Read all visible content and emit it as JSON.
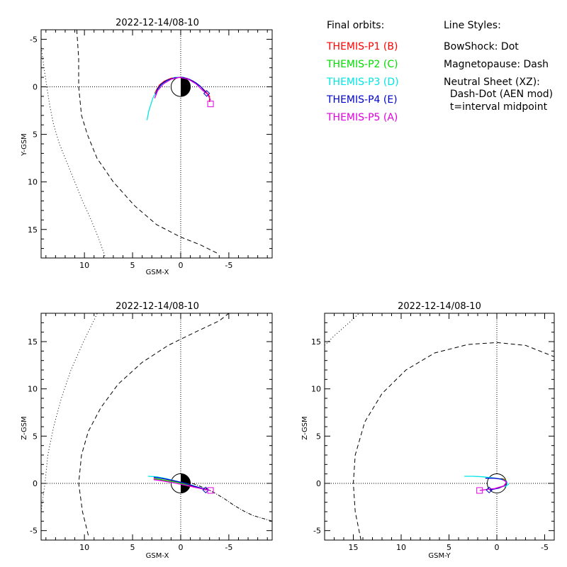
{
  "legend": {
    "heading": "Final orbits:",
    "probes": [
      {
        "label": "THEMIS-P1 (B)",
        "color": "#ff0000"
      },
      {
        "label": "THEMIS-P2 (C)",
        "color": "#00dd00"
      },
      {
        "label": "THEMIS-P3 (D)",
        "color": "#00e5e5"
      },
      {
        "label": "THEMIS-P4 (E)",
        "color": "#0000cc"
      },
      {
        "label": "THEMIS-P5 (A)",
        "color": "#e000e0"
      }
    ],
    "styles_heading": "Line Styles:",
    "styles": [
      "BowShock: Dot",
      "Magnetopause: Dash",
      "Neutral Sheet (XZ):",
      "  Dash-Dot (AEN mod)",
      "  t=interval midpoint"
    ]
  },
  "chart_data": [
    {
      "type": "line",
      "title": "2022-12-14/08-10",
      "xlabel": "GSM-X",
      "ylabel": "Y-GSM",
      "xlim": [
        14.5,
        -9.5
      ],
      "ylim": [
        18,
        -6
      ],
      "xticks": [
        10,
        5,
        0,
        -5
      ],
      "yticks": [
        -5,
        0,
        5,
        10,
        15
      ],
      "grid": "dotted lines at x=0 and y=0",
      "earth": {
        "radius": 1,
        "dark_side": "negative x"
      },
      "bow_shock": [
        [
          14.6,
          -5
        ],
        [
          14.2,
          -2
        ],
        [
          13.9,
          0
        ],
        [
          13.6,
          2
        ],
        [
          13.2,
          4
        ],
        [
          12.6,
          6
        ],
        [
          11.8,
          8
        ],
        [
          11,
          10
        ],
        [
          10.2,
          12
        ],
        [
          9.3,
          14
        ],
        [
          8.5,
          16
        ],
        [
          7.8,
          18
        ]
      ],
      "magnetopause": [
        [
          10.8,
          -6
        ],
        [
          10.6,
          -3
        ],
        [
          10.6,
          0
        ],
        [
          10.3,
          3
        ],
        [
          9.7,
          5
        ],
        [
          8.7,
          7.5
        ],
        [
          7,
          10
        ],
        [
          4.8,
          12.5
        ],
        [
          2.5,
          14.5
        ],
        [
          0,
          15.8
        ],
        [
          -2,
          16.6
        ],
        [
          -4,
          17.6
        ]
      ],
      "neutral_sheet": [],
      "orbits": [
        {
          "probe": "THEMIS-P1 (B)",
          "color": "#ff0000",
          "points": [
            [
              2.7,
              0.7
            ],
            [
              2.5,
              0.3
            ],
            [
              2.2,
              -0.2
            ],
            [
              1.7,
              -0.6
            ],
            [
              1,
              -0.9
            ],
            [
              0.2,
              -1
            ],
            [
              -0.6,
              -0.9
            ],
            [
              -1.3,
              -0.6
            ],
            [
              -2,
              -0.1
            ],
            [
              -2.6,
              0.5
            ],
            [
              -3,
              1
            ],
            [
              -3,
              1.6
            ]
          ]
        },
        {
          "probe": "THEMIS-P2 (C)",
          "color": "#00dd00",
          "points": [
            [
              2.6,
              0.6
            ],
            [
              2.3,
              0.2
            ],
            [
              1.8,
              -0.4
            ],
            [
              1.1,
              -0.8
            ],
            [
              0.3,
              -1
            ],
            [
              -0.5,
              -0.9
            ]
          ]
        },
        {
          "probe": "THEMIS-P3 (D)",
          "color": "#00e5e5",
          "points": [
            [
              3.5,
              3.5
            ],
            [
              3.3,
              2.5
            ],
            [
              2.9,
              1.2
            ],
            [
              2.3,
              0.1
            ],
            [
              1.5,
              -0.6
            ],
            [
              0.6,
              -1
            ],
            [
              -0.3,
              -1
            ],
            [
              -1.2,
              -0.6
            ],
            [
              -1.9,
              -0.1
            ]
          ]
        },
        {
          "probe": "THEMIS-P4 (E)",
          "color": "#0000cc",
          "points": [
            [
              2.6,
              0.8
            ],
            [
              2.4,
              0.2
            ],
            [
              2,
              -0.3
            ],
            [
              1.4,
              -0.7
            ],
            [
              0.6,
              -0.95
            ],
            [
              -0.2,
              -1
            ],
            [
              -0.9,
              -0.8
            ],
            [
              -1.6,
              -0.4
            ],
            [
              -2.1,
              0
            ],
            [
              -2.6,
              0.6
            ]
          ]
        },
        {
          "probe": "THEMIS-P5 (A)",
          "color": "#e000e0",
          "points": [
            [
              2.7,
              1.2
            ],
            [
              2.4,
              0.4
            ],
            [
              1.8,
              -0.3
            ],
            [
              1,
              -0.8
            ],
            [
              0.1,
              -1
            ],
            [
              -0.8,
              -0.8
            ],
            [
              -1.6,
              -0.3
            ],
            [
              -2.2,
              0.3
            ],
            [
              -2.8,
              0.8
            ],
            [
              -3.1,
              1.4
            ]
          ]
        }
      ],
      "markers": [
        {
          "shape": "diamond",
          "color": "#0000cc",
          "point": [
            -2.7,
            0.7
          ]
        },
        {
          "shape": "square",
          "color": "#e000e0",
          "point": [
            -3.1,
            1.8
          ]
        }
      ]
    },
    {
      "type": "line",
      "title": "2022-12-14/08-10",
      "xlabel": "GSM-X",
      "ylabel": "Z-GSM",
      "xlim": [
        14.5,
        -9.5
      ],
      "ylim": [
        -6,
        18
      ],
      "xticks": [
        10,
        5,
        0,
        -5
      ],
      "yticks": [
        -5,
        0,
        5,
        10,
        15
      ],
      "grid": "dotted lines at x=0 and y=0",
      "earth": {
        "radius": 1,
        "dark_side": "negative x"
      },
      "bow_shock": [
        [
          14.8,
          -6
        ],
        [
          14.5,
          -3
        ],
        [
          14.1,
          0
        ],
        [
          13.8,
          3
        ],
        [
          13.2,
          6
        ],
        [
          12.4,
          9
        ],
        [
          11.4,
          12
        ],
        [
          10.1,
          15
        ],
        [
          8.9,
          17.5
        ],
        [
          8.4,
          18.6
        ]
      ],
      "magnetopause": [
        [
          9.6,
          -5.5
        ],
        [
          10.2,
          -3
        ],
        [
          10.6,
          0
        ],
        [
          10.3,
          3
        ],
        [
          9.6,
          5.5
        ],
        [
          8.3,
          8
        ],
        [
          6.5,
          10.5
        ],
        [
          4,
          12.8
        ],
        [
          1.3,
          14.6
        ],
        [
          -1.5,
          16
        ],
        [
          -4,
          17.2
        ],
        [
          -5,
          18
        ]
      ],
      "neutral_sheet": [
        [
          -0.5,
          0.2
        ],
        [
          -1.5,
          -0.1
        ],
        [
          -2.5,
          -0.5
        ],
        [
          -3.5,
          -1
        ],
        [
          -4.5,
          -1.6
        ],
        [
          -5.5,
          -2.3
        ],
        [
          -6.5,
          -2.9
        ],
        [
          -7.5,
          -3.4
        ],
        [
          -8.5,
          -3.7
        ],
        [
          -9.5,
          -4
        ]
      ],
      "orbits": [
        {
          "probe": "THEMIS-P1 (B)",
          "color": "#ff0000",
          "points": [
            [
              2.8,
              0.5
            ],
            [
              1.8,
              0.35
            ],
            [
              0.5,
              0.15
            ],
            [
              -0.7,
              -0.15
            ],
            [
              -1.8,
              -0.45
            ],
            [
              -2.6,
              -0.7
            ]
          ]
        },
        {
          "probe": "THEMIS-P2 (C)",
          "color": "#00dd00",
          "points": [
            [
              2.7,
              0.5
            ],
            [
              1.5,
              0.3
            ],
            [
              0.3,
              0.1
            ],
            [
              -0.8,
              -0.2
            ]
          ]
        },
        {
          "probe": "THEMIS-P3 (D)",
          "color": "#00e5e5",
          "points": [
            [
              3.4,
              0.75
            ],
            [
              2.5,
              0.7
            ],
            [
              1.5,
              0.5
            ],
            [
              0.5,
              0.25
            ],
            [
              -0.5,
              0
            ],
            [
              -1.5,
              -0.3
            ],
            [
              -2.4,
              -0.6
            ]
          ]
        },
        {
          "probe": "THEMIS-P4 (E)",
          "color": "#0000cc",
          "points": [
            [
              2.8,
              0.65
            ],
            [
              1.8,
              0.5
            ],
            [
              0.8,
              0.3
            ],
            [
              -0.3,
              0.05
            ],
            [
              -1.4,
              -0.3
            ],
            [
              -2.3,
              -0.55
            ],
            [
              -2.7,
              -0.7
            ]
          ]
        },
        {
          "probe": "THEMIS-P5 (A)",
          "color": "#e000e0",
          "points": [
            [
              2.8,
              0.4
            ],
            [
              1.8,
              0.25
            ],
            [
              0.7,
              0.05
            ],
            [
              -0.5,
              -0.2
            ],
            [
              -1.6,
              -0.45
            ],
            [
              -2.6,
              -0.65
            ],
            [
              -3.1,
              -0.75
            ]
          ]
        }
      ],
      "markers": [
        {
          "shape": "diamond",
          "color": "#0000cc",
          "point": [
            -2.6,
            -0.7
          ]
        },
        {
          "shape": "square",
          "color": "#e000e0",
          "point": [
            -3.1,
            -0.75
          ]
        }
      ]
    },
    {
      "type": "line",
      "title": "2022-12-14/08-10",
      "xlabel": "GSM-Y",
      "ylabel": "Z-GSM",
      "xlim": [
        18,
        -6
      ],
      "ylim": [
        -6,
        18
      ],
      "xticks": [
        15,
        10,
        5,
        0,
        -5
      ],
      "yticks": [
        -5,
        0,
        5,
        10,
        15
      ],
      "grid": "dotted lines at x=0 and y=0",
      "earth": {
        "radius": 1,
        "dark_side": "none"
      },
      "bow_shock": [
        [
          18,
          14.6
        ],
        [
          17,
          15.6
        ],
        [
          16,
          16.5
        ],
        [
          15,
          17.4
        ],
        [
          14.2,
          18.2
        ]
      ],
      "magnetopause": [
        [
          14.2,
          -6
        ],
        [
          14.8,
          -3
        ],
        [
          15,
          0
        ],
        [
          14.8,
          3
        ],
        [
          13.8,
          6.5
        ],
        [
          12,
          9.5
        ],
        [
          9.5,
          12
        ],
        [
          6.5,
          13.8
        ],
        [
          3,
          14.7
        ],
        [
          0,
          14.9
        ],
        [
          -3,
          14.6
        ],
        [
          -5,
          13.8
        ],
        [
          -6,
          13.4
        ]
      ],
      "neutral_sheet": [],
      "orbits": [
        {
          "probe": "THEMIS-P1 (B)",
          "color": "#ff0000",
          "points": [
            [
              -0.5,
              0.5
            ],
            [
              -0.9,
              0.4
            ],
            [
              -1,
              0.1
            ],
            [
              -0.7,
              -0.3
            ],
            [
              0.1,
              -0.5
            ]
          ]
        },
        {
          "probe": "THEMIS-P2 (C)",
          "color": "#00dd00",
          "points": [
            [
              -0.4,
              0.5
            ],
            [
              -0.9,
              0.35
            ],
            [
              -1,
              0.1
            ]
          ]
        },
        {
          "probe": "THEMIS-P3 (D)",
          "color": "#00e5e5",
          "points": [
            [
              3.4,
              0.75
            ],
            [
              2.5,
              0.75
            ],
            [
              1.5,
              0.7
            ],
            [
              0.5,
              0.6
            ],
            [
              -0.4,
              0.45
            ],
            [
              -1,
              0.2
            ],
            [
              -1.2,
              -0.1
            ],
            [
              -0.8,
              -0.4
            ]
          ]
        },
        {
          "probe": "THEMIS-P4 (E)",
          "color": "#0000cc",
          "points": [
            [
              1.2,
              0.55
            ],
            [
              0.3,
              0.55
            ],
            [
              -0.5,
              0.45
            ],
            [
              -1,
              0.2
            ],
            [
              -0.9,
              -0.2
            ],
            [
              -0.2,
              -0.5
            ],
            [
              0.7,
              -0.7
            ]
          ]
        },
        {
          "probe": "THEMIS-P5 (A)",
          "color": "#e000e0",
          "points": [
            [
              -0.6,
              0.4
            ],
            [
              -1,
              0.15
            ],
            [
              -0.8,
              -0.25
            ],
            [
              0.2,
              -0.55
            ],
            [
              1.1,
              -0.65
            ],
            [
              1.8,
              -0.75
            ]
          ]
        }
      ],
      "markers": [
        {
          "shape": "diamond",
          "color": "#0000cc",
          "point": [
            0.8,
            -0.7
          ]
        },
        {
          "shape": "square",
          "color": "#e000e0",
          "point": [
            1.8,
            -0.75
          ]
        }
      ]
    }
  ]
}
